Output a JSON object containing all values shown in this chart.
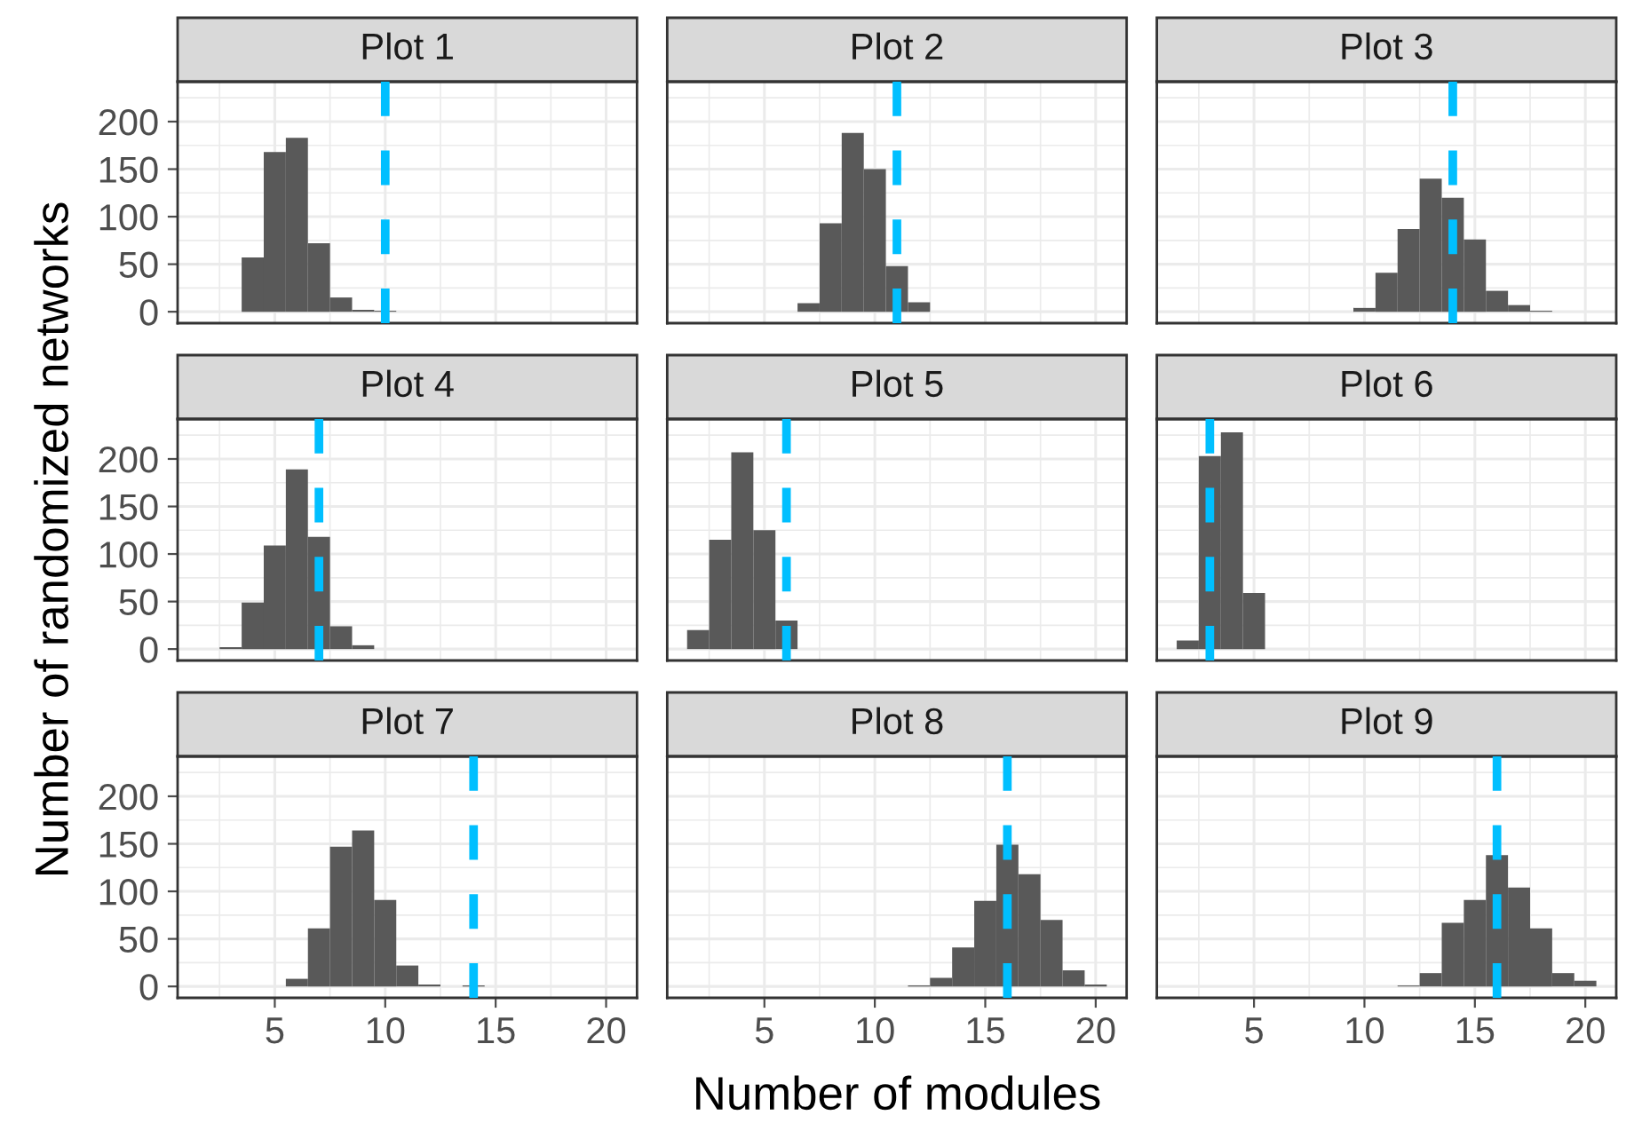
{
  "chart_data": [
    {
      "type": "histogram",
      "title": "Plot 1",
      "bins": [
        3.5,
        4.5,
        5.5,
        6.5,
        7.5,
        8.5,
        9.5,
        10.5
      ],
      "values": [
        57,
        168,
        183,
        72,
        15,
        2,
        1
      ],
      "color": "#595959",
      "xlim": [
        0.6,
        21.4
      ],
      "ylim": [
        -12,
        242
      ],
      "xticks": [
        5,
        10,
        15,
        20
      ],
      "yticks": [
        0,
        50,
        100,
        150,
        200
      ],
      "grid": true,
      "tick_labels": "y",
      "ref_lines": [
        {
          "axis": "x",
          "value": 10,
          "color": "#00bfff",
          "line_style": "dashed"
        }
      ]
    },
    {
      "type": "histogram",
      "title": "Plot 2",
      "bins": [
        6.5,
        7.5,
        8.5,
        9.5,
        10.5,
        11.5,
        12.5
      ],
      "values": [
        9,
        93,
        188,
        150,
        48,
        10
      ],
      "color": "#595959",
      "xlim": [
        0.6,
        21.4
      ],
      "ylim": [
        -12,
        242
      ],
      "xticks": [
        5,
        10,
        15,
        20
      ],
      "yticks": [
        0,
        50,
        100,
        150,
        200
      ],
      "grid": true,
      "tick_labels": false,
      "ref_lines": [
        {
          "axis": "x",
          "value": 11,
          "color": "#00bfff",
          "line_style": "dashed"
        }
      ]
    },
    {
      "type": "histogram",
      "title": "Plot 3",
      "bins": [
        9.5,
        10.5,
        11.5,
        12.5,
        13.5,
        14.5,
        15.5,
        16.5,
        17.5,
        18.5
      ],
      "values": [
        4,
        41,
        87,
        140,
        120,
        76,
        22,
        7,
        1
      ],
      "color": "#595959",
      "xlim": [
        0.6,
        21.4
      ],
      "ylim": [
        -12,
        242
      ],
      "xticks": [
        5,
        10,
        15,
        20
      ],
      "yticks": [
        0,
        50,
        100,
        150,
        200
      ],
      "grid": true,
      "tick_labels": false,
      "ref_lines": [
        {
          "axis": "x",
          "value": 14,
          "color": "#00bfff",
          "line_style": "dashed"
        }
      ]
    },
    {
      "type": "histogram",
      "title": "Plot 4",
      "ylabel": "Number of randomized networks",
      "bins": [
        2.5,
        3.5,
        4.5,
        5.5,
        6.5,
        7.5,
        8.5,
        9.5
      ],
      "values": [
        2,
        49,
        109,
        189,
        118,
        24,
        4
      ],
      "color": "#595959",
      "xlim": [
        0.6,
        21.4
      ],
      "ylim": [
        -12,
        242
      ],
      "xticks": [
        5,
        10,
        15,
        20
      ],
      "yticks": [
        0,
        50,
        100,
        150,
        200
      ],
      "grid": true,
      "tick_labels": "y",
      "ref_lines": [
        {
          "axis": "x",
          "value": 7,
          "color": "#00bfff",
          "line_style": "dashed"
        }
      ]
    },
    {
      "type": "histogram",
      "title": "Plot 5",
      "bins": [
        1.5,
        2.5,
        3.5,
        4.5,
        5.5,
        6.5
      ],
      "values": [
        20,
        115,
        207,
        125,
        30
      ],
      "color": "#595959",
      "xlim": [
        0.6,
        21.4
      ],
      "ylim": [
        -12,
        242
      ],
      "xticks": [
        5,
        10,
        15,
        20
      ],
      "yticks": [
        0,
        50,
        100,
        150,
        200
      ],
      "grid": true,
      "tick_labels": false,
      "ref_lines": [
        {
          "axis": "x",
          "value": 6,
          "color": "#00bfff",
          "line_style": "dashed"
        }
      ]
    },
    {
      "type": "histogram",
      "title": "Plot 6",
      "bins": [
        1.5,
        2.5,
        3.5,
        4.5,
        5.5
      ],
      "values": [
        9,
        203,
        228,
        59
      ],
      "color": "#595959",
      "xlim": [
        0.6,
        21.4
      ],
      "ylim": [
        -12,
        242
      ],
      "xticks": [
        5,
        10,
        15,
        20
      ],
      "yticks": [
        0,
        50,
        100,
        150,
        200
      ],
      "grid": true,
      "tick_labels": false,
      "ref_lines": [
        {
          "axis": "x",
          "value": 3,
          "color": "#00bfff",
          "line_style": "dashed"
        }
      ]
    },
    {
      "type": "histogram",
      "title": "Plot 7",
      "bins": [
        5.5,
        6.5,
        7.5,
        8.5,
        9.5,
        10.5,
        11.5,
        12.5,
        13.5,
        14.5
      ],
      "values": [
        8,
        61,
        147,
        164,
        91,
        22,
        2,
        0,
        1
      ],
      "color": "#595959",
      "xlim": [
        0.6,
        21.4
      ],
      "ylim": [
        -12,
        242
      ],
      "xticks": [
        5,
        10,
        15,
        20
      ],
      "yticks": [
        0,
        50,
        100,
        150,
        200
      ],
      "grid": true,
      "ref_lines": [
        {
          "axis": "x",
          "value": 14,
          "color": "#00bfff",
          "line_style": "dashed"
        }
      ]
    },
    {
      "type": "histogram",
      "title": "Plot 8",
      "xlabel": "Number of modules",
      "bins": [
        11.5,
        12.5,
        13.5,
        14.5,
        15.5,
        16.5,
        17.5,
        18.5,
        19.5,
        20.5
      ],
      "values": [
        1,
        9,
        41,
        90,
        149,
        118,
        70,
        17,
        2
      ],
      "color": "#595959",
      "xlim": [
        0.6,
        21.4
      ],
      "ylim": [
        -12,
        242
      ],
      "xticks": [
        5,
        10,
        15,
        20
      ],
      "yticks": [
        0,
        50,
        100,
        150,
        200
      ],
      "grid": true,
      "tick_labels": "x",
      "ref_lines": [
        {
          "axis": "x",
          "value": 16,
          "color": "#00bfff",
          "line_style": "dashed"
        }
      ]
    },
    {
      "type": "histogram",
      "title": "Plot 9",
      "bins": [
        11.5,
        12.5,
        13.5,
        14.5,
        15.5,
        16.5,
        17.5,
        18.5,
        19.5,
        20.5
      ],
      "values": [
        1,
        14,
        67,
        91,
        138,
        104,
        61,
        14,
        6
      ],
      "color": "#595959",
      "xlim": [
        0.6,
        21.4
      ],
      "ylim": [
        -12,
        242
      ],
      "xticks": [
        5,
        10,
        15,
        20
      ],
      "yticks": [
        0,
        50,
        100,
        150,
        200
      ],
      "grid": true,
      "tick_labels": "x",
      "ref_lines": [
        {
          "axis": "x",
          "value": 16,
          "color": "#00bfff",
          "line_style": "dashed"
        }
      ]
    }
  ]
}
